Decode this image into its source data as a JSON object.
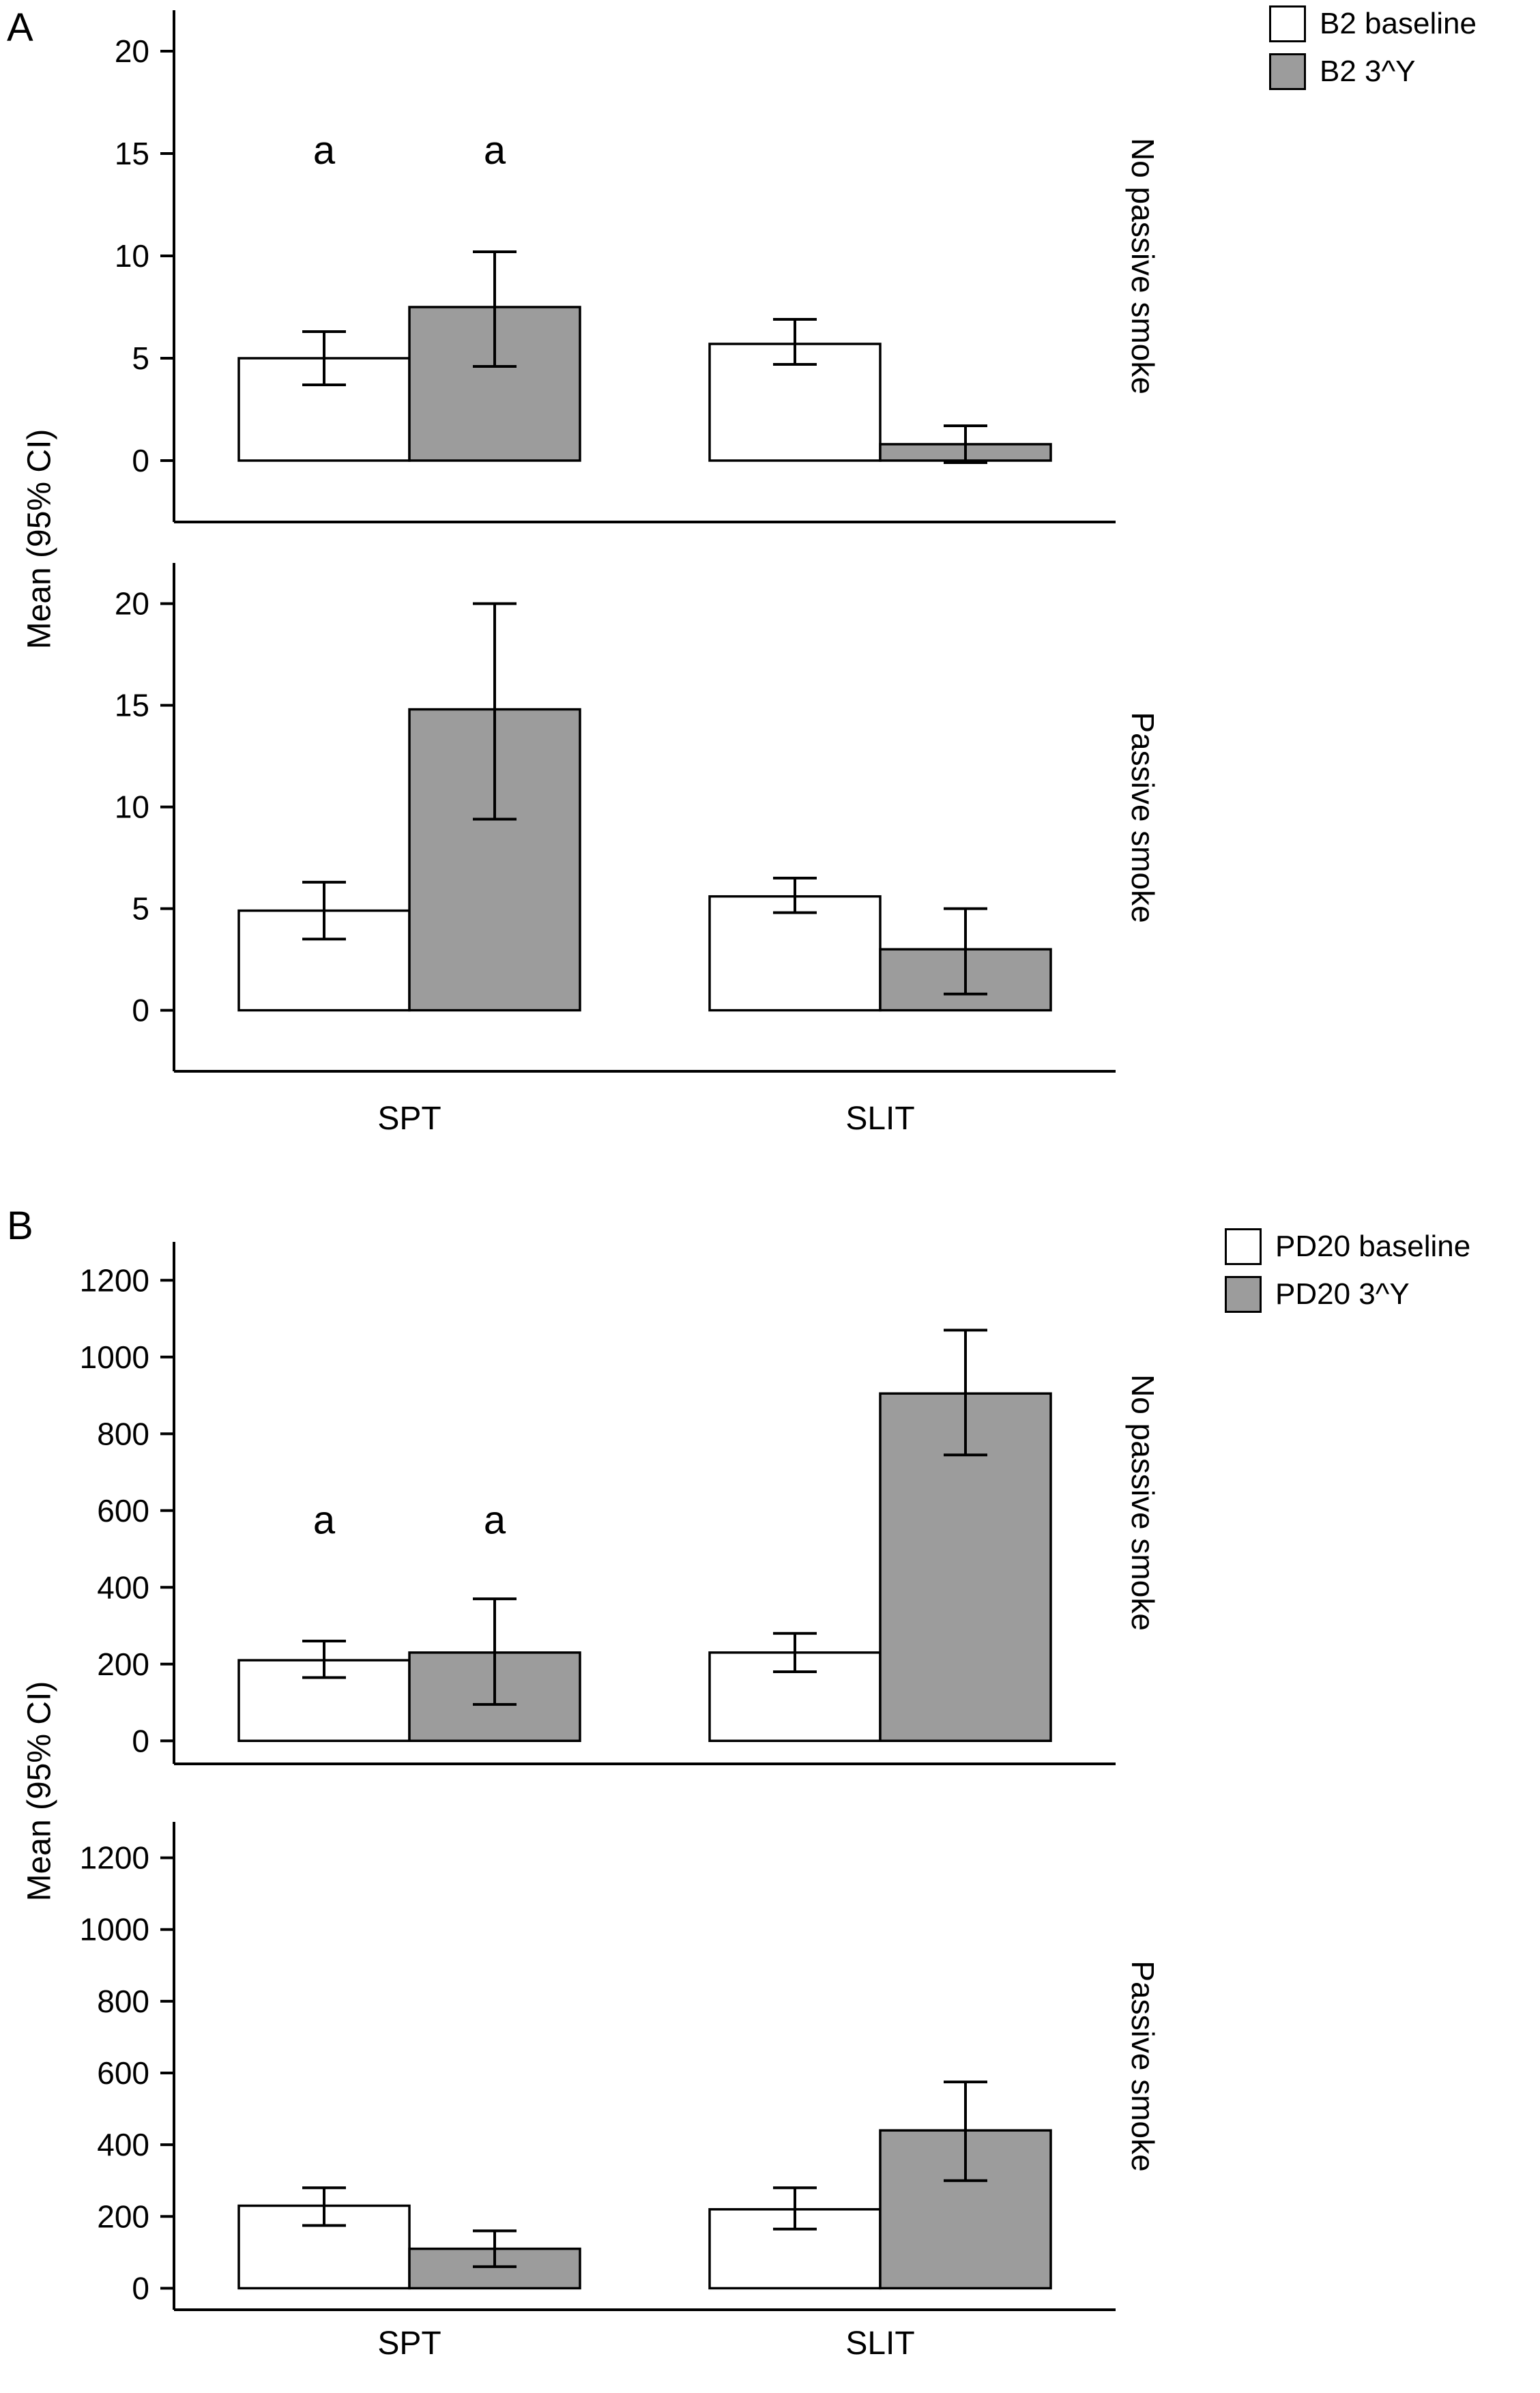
{
  "figure": {
    "panel_a": {
      "label": "A",
      "ylabel": "Mean (95% CI)",
      "legend": [
        {
          "label": "B2 baseline",
          "fill": "#ffffff"
        },
        {
          "label": "B2 3^Y",
          "fill": "#9c9c9c"
        }
      ]
    },
    "panel_b": {
      "label": "B",
      "ylabel": "Mean (95% CI)",
      "legend": [
        {
          "label": "PD20 baseline",
          "fill": "#ffffff"
        },
        {
          "label": "PD20 3^Y",
          "fill": "#9c9c9c"
        }
      ]
    }
  },
  "colors": {
    "bar_white": "#ffffff",
    "bar_gray": "#9c9c9c",
    "outline": "#000000",
    "background": "#ffffff"
  },
  "chart_data": [
    {
      "type": "bar",
      "panel": "A",
      "side_label": "No passive smoke",
      "categories": [
        "SPT",
        "SLIT"
      ],
      "xlabel": "",
      "ylabel": "Mean (95% CI)",
      "yticks": [
        0,
        5,
        10,
        15,
        20
      ],
      "ylim": [
        -3,
        22
      ],
      "grid": false,
      "legend_position": "top-right-outside",
      "series": [
        {
          "name": "B2 baseline",
          "fill": "#ffffff",
          "values": [
            5.0,
            5.7
          ],
          "ci_low": [
            3.7,
            4.7
          ],
          "ci_high": [
            6.3,
            6.9
          ]
        },
        {
          "name": "B2 3^Y",
          "fill": "#9c9c9c",
          "values": [
            7.5,
            0.8
          ],
          "ci_low": [
            4.6,
            -0.1
          ],
          "ci_high": [
            10.2,
            1.7
          ]
        }
      ],
      "annotations": [
        {
          "text": "a",
          "group": 0,
          "series": 0,
          "y": 14.5
        },
        {
          "text": "a",
          "group": 0,
          "series": 1,
          "y": 14.5
        }
      ],
      "show_x_labels": false
    },
    {
      "type": "bar",
      "panel": "A",
      "side_label": "Passive smoke",
      "categories": [
        "SPT",
        "SLIT"
      ],
      "xlabel": "",
      "ylabel": "Mean (95% CI)",
      "yticks": [
        0,
        5,
        10,
        15,
        20
      ],
      "ylim": [
        -3,
        22
      ],
      "grid": false,
      "series": [
        {
          "name": "B2 baseline",
          "fill": "#ffffff",
          "values": [
            4.9,
            5.6
          ],
          "ci_low": [
            3.5,
            4.8
          ],
          "ci_high": [
            6.3,
            6.5
          ]
        },
        {
          "name": "B2 3^Y",
          "fill": "#9c9c9c",
          "values": [
            14.8,
            3.0
          ],
          "ci_low": [
            9.4,
            0.8
          ],
          "ci_high": [
            20.0,
            5.0
          ]
        }
      ],
      "annotations": [],
      "show_x_labels": true
    },
    {
      "type": "bar",
      "panel": "B",
      "side_label": "No passive smoke",
      "categories": [
        "SPT",
        "SLIT"
      ],
      "xlabel": "",
      "ylabel": "Mean (95% CI)",
      "yticks": [
        0,
        200,
        400,
        600,
        800,
        1000,
        1200
      ],
      "ylim": [
        -60,
        1300
      ],
      "grid": false,
      "legend_position": "top-right-outside",
      "series": [
        {
          "name": "PD20 baseline",
          "fill": "#ffffff",
          "values": [
            210,
            230
          ],
          "ci_low": [
            165,
            180
          ],
          "ci_high": [
            260,
            280
          ]
        },
        {
          "name": "PD20 3^Y",
          "fill": "#9c9c9c",
          "values": [
            230,
            905
          ],
          "ci_low": [
            95,
            745
          ],
          "ci_high": [
            370,
            1070
          ]
        }
      ],
      "annotations": [
        {
          "text": "a",
          "group": 0,
          "series": 0,
          "y": 540
        },
        {
          "text": "a",
          "group": 0,
          "series": 1,
          "y": 540
        }
      ],
      "show_x_labels": false
    },
    {
      "type": "bar",
      "panel": "B",
      "side_label": "Passive smoke",
      "categories": [
        "SPT",
        "SLIT"
      ],
      "xlabel": "",
      "ylabel": "Mean (95% CI)",
      "yticks": [
        0,
        200,
        400,
        600,
        800,
        1000,
        1200
      ],
      "ylim": [
        -60,
        1300
      ],
      "grid": false,
      "series": [
        {
          "name": "PD20 baseline",
          "fill": "#ffffff",
          "values": [
            230,
            220
          ],
          "ci_low": [
            175,
            165
          ],
          "ci_high": [
            280,
            280
          ]
        },
        {
          "name": "PD20 3^Y",
          "fill": "#9c9c9c",
          "values": [
            110,
            440
          ],
          "ci_low": [
            60,
            300
          ],
          "ci_high": [
            160,
            575
          ]
        }
      ],
      "annotations": [],
      "show_x_labels": true
    }
  ]
}
